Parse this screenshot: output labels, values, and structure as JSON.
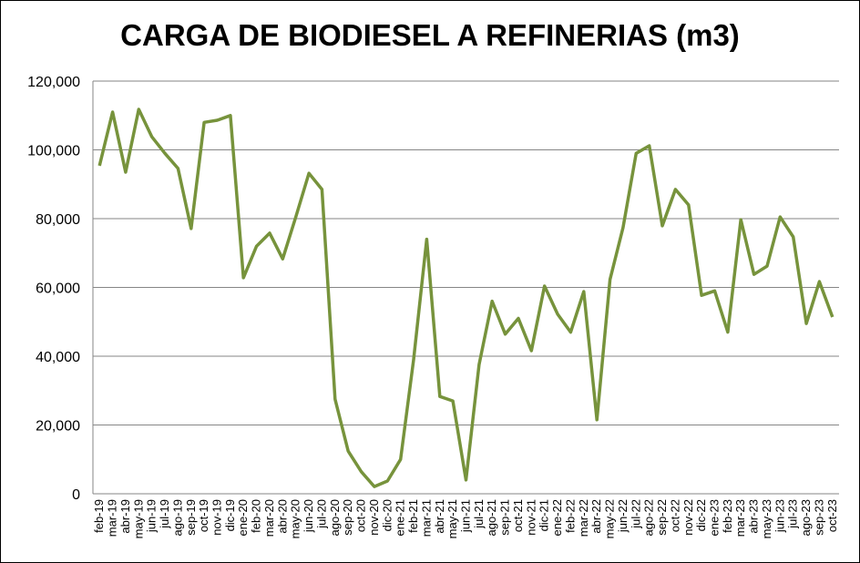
{
  "chart_data": {
    "type": "line",
    "title": "CARGA DE BIODIESEL A REFINERIAS (m3)",
    "xlabel": "",
    "ylabel": "",
    "ylim": [
      0,
      120000
    ],
    "yticks": [
      0,
      20000,
      40000,
      60000,
      80000,
      100000,
      120000
    ],
    "ytick_labels": [
      "0",
      "20,000",
      "40,000",
      "60,000",
      "80,000",
      "100,000",
      "120,000"
    ],
    "grid": true,
    "legend": "none",
    "line_color": "#77933C",
    "categories": [
      "feb-19",
      "mar-19",
      "abr-19",
      "may-19",
      "jun-19",
      "jul-19",
      "ago-19",
      "sep-19",
      "oct-19",
      "nov-19",
      "dic-19",
      "ene-20",
      "feb-20",
      "mar-20",
      "abr-20",
      "may-20",
      "jun-20",
      "jul-20",
      "ago-20",
      "sep-20",
      "oct-20",
      "nov-20",
      "dic-20",
      "ene-21",
      "feb-21",
      "mar-21",
      "abr-21",
      "may-21",
      "jun-21",
      "jul-21",
      "ago-21",
      "sep-21",
      "oct-21",
      "nov-21",
      "dic-21",
      "ene-22",
      "feb-22",
      "mar-22",
      "abr-22",
      "may-22",
      "jun-22",
      "jul-22",
      "ago-22",
      "sep-22",
      "oct-22",
      "nov-22",
      "dic-22",
      "ene-23",
      "feb-23",
      "mar-23",
      "abr-23",
      "may-23",
      "jun-23",
      "jul-23",
      "ago-23",
      "sep-23",
      "oct-23"
    ],
    "series": [
      {
        "name": "Carga de biodiesel",
        "values": [
          95400,
          111000,
          93500,
          111800,
          103800,
          99000,
          94600,
          77100,
          108000,
          108600,
          110000,
          62800,
          72000,
          75800,
          68300,
          80500,
          93200,
          88500,
          27500,
          12400,
          6400,
          2100,
          3700,
          10000,
          39000,
          74000,
          28300,
          27000,
          4000,
          37600,
          56000,
          46400,
          51000,
          41600,
          60400,
          52200,
          47000,
          58800,
          21500,
          62300,
          77400,
          99000,
          101200,
          77900,
          88500,
          84000,
          57700,
          59000,
          47000,
          79700,
          63800,
          66200,
          80500,
          74700,
          49500,
          61700,
          51400
        ]
      }
    ]
  }
}
